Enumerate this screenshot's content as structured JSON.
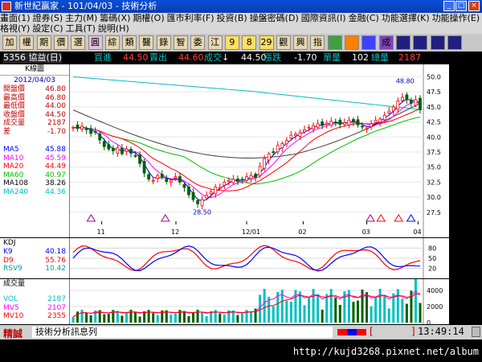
{
  "window": {
    "title": "新世紀贏家 - 101/04/03 - 技術分析",
    "min_label": "_",
    "max_label": "□",
    "close_label": "×"
  },
  "menu_row1": [
    "畫面(1)",
    "證券(S)",
    "主力(M)",
    "籌碼(X)",
    "期權(O)",
    "匯市利率(F)",
    "投資(B)",
    "操盤密碼(D)",
    "國際資訊(I)",
    "金融(C)",
    "功能選擇(K)",
    "功能操作(E)"
  ],
  "menu_row2": [
    "格視(Y)",
    "設定(C)",
    "工具(T)",
    "說明(H)"
  ],
  "toolbar": [
    "加",
    "權",
    "期",
    "價",
    "選",
    "圓",
    "綜",
    "類",
    "醫",
    "錄",
    "智",
    "委",
    "江",
    "9",
    "8",
    "29",
    "觀",
    "興",
    "指",
    "",
    "",
    "",
    "成",
    "",
    "",
    "",
    ""
  ],
  "info": {
    "code_name": "5356 協益(日)",
    "buy_label": "買進",
    "buy_value": "44.50",
    "sell_label": "賣出",
    "sell_value": "44.60",
    "trade_label": "成交",
    "arrow": "↓",
    "trade_value": "44.50",
    "change_label": "漲跌",
    "change_value": "-1.70",
    "vol_label": "單量",
    "vol_value": "102",
    "total_label": "總量",
    "total_value": "2187"
  },
  "left_panel": {
    "header": "K線圖",
    "date": "2012/04/03",
    "quote": [
      {
        "label": "開盤價",
        "value": "46.80"
      },
      {
        "label": "最高價",
        "value": "46.80"
      },
      {
        "label": "最低價",
        "value": "44.00"
      },
      {
        "label": "收盤價",
        "value": "44.50"
      },
      {
        "label": "成交量",
        "value": "2187"
      },
      {
        "label": "差",
        "value": "-1.70"
      }
    ],
    "ma": [
      {
        "label": "MA5",
        "value": "45.88",
        "color": "#0000ff"
      },
      {
        "label": "MA10",
        "value": "45.59",
        "color": "#ff00ff"
      },
      {
        "label": "MA20",
        "value": "44.49",
        "color": "#ff0000"
      },
      {
        "label": "MA60",
        "value": "40.97",
        "color": "#00c000"
      },
      {
        "label": "MA108",
        "value": "38.26",
        "color": "#000000"
      },
      {
        "label": "MA240",
        "value": "44.36",
        "color": "#00c0c0"
      }
    ]
  },
  "kd_panel": {
    "header": "KDJ",
    "rows": [
      {
        "label": "K9",
        "value": "40.18",
        "color": "#0000ff"
      },
      {
        "label": "D9",
        "value": "55.76",
        "color": "#ff0000"
      },
      {
        "label": "RSV9",
        "value": "10.42",
        "color": "#00a0a0"
      }
    ],
    "yticks": [
      "80",
      "50",
      "20"
    ]
  },
  "vol_panel": {
    "header": "成交量",
    "rows": [
      {
        "label": "VOL",
        "value": "2187",
        "color": "#00c0c0"
      },
      {
        "label": "MV5",
        "value": "2107",
        "color": "#ff00ff"
      },
      {
        "label": "MV10",
        "value": "2355",
        "color": "#ff0000"
      }
    ],
    "yticks": [
      "4000",
      "2000",
      "0"
    ]
  },
  "chart_data": {
    "type": "candlestick",
    "ylim": [
      26,
      51
    ],
    "yticks": [
      27.5,
      30.0,
      32.5,
      35.0,
      37.5,
      40.0,
      42.5,
      45.0,
      47.5,
      50.0
    ],
    "xticks": [
      "11",
      "12",
      "12/01",
      "02",
      "03",
      "04"
    ],
    "annotations": [
      {
        "label": "48.80",
        "value": 48.8
      },
      {
        "label": "28.50",
        "value": 28.5
      }
    ],
    "closes": [
      41.6,
      41.4,
      41.8,
      41.2,
      40.6,
      40.8,
      39.5,
      38.4,
      38.0,
      37.7,
      38.2,
      37.2,
      38.0,
      37.3,
      36.9,
      35.6,
      34.0,
      33.0,
      32.8,
      33.6,
      33.4,
      32.6,
      32.8,
      33.4,
      32.5,
      31.6,
      30.4,
      29.6,
      28.9,
      29.6,
      30.3,
      30.9,
      31.7,
      31.6,
      32.5,
      32.8,
      33.0,
      32.6,
      32.9,
      33.4,
      33.6,
      33.3,
      35.1,
      36.4,
      37.2,
      37.4,
      38.6,
      38.9,
      39.4,
      40.3,
      40.5,
      40.7,
      41.2,
      41.6,
      41.9,
      42.2,
      41.9,
      42.3,
      42.6,
      42.4,
      42.1,
      42.4,
      42.8,
      42.5,
      42.0,
      41.7,
      41.4,
      42.2,
      42.8,
      43.0,
      43.6,
      44.3,
      45.0,
      46.0,
      46.6,
      46.2,
      45.6,
      46.2,
      44.5
    ]
  },
  "status": {
    "left": "精誠",
    "ticker": "技術分析訊息列",
    "bracket_open": "[",
    "bracket_close": "]",
    "time": "13:49:14",
    "watermark": "http://kujd3268.pixnet.net/album"
  }
}
